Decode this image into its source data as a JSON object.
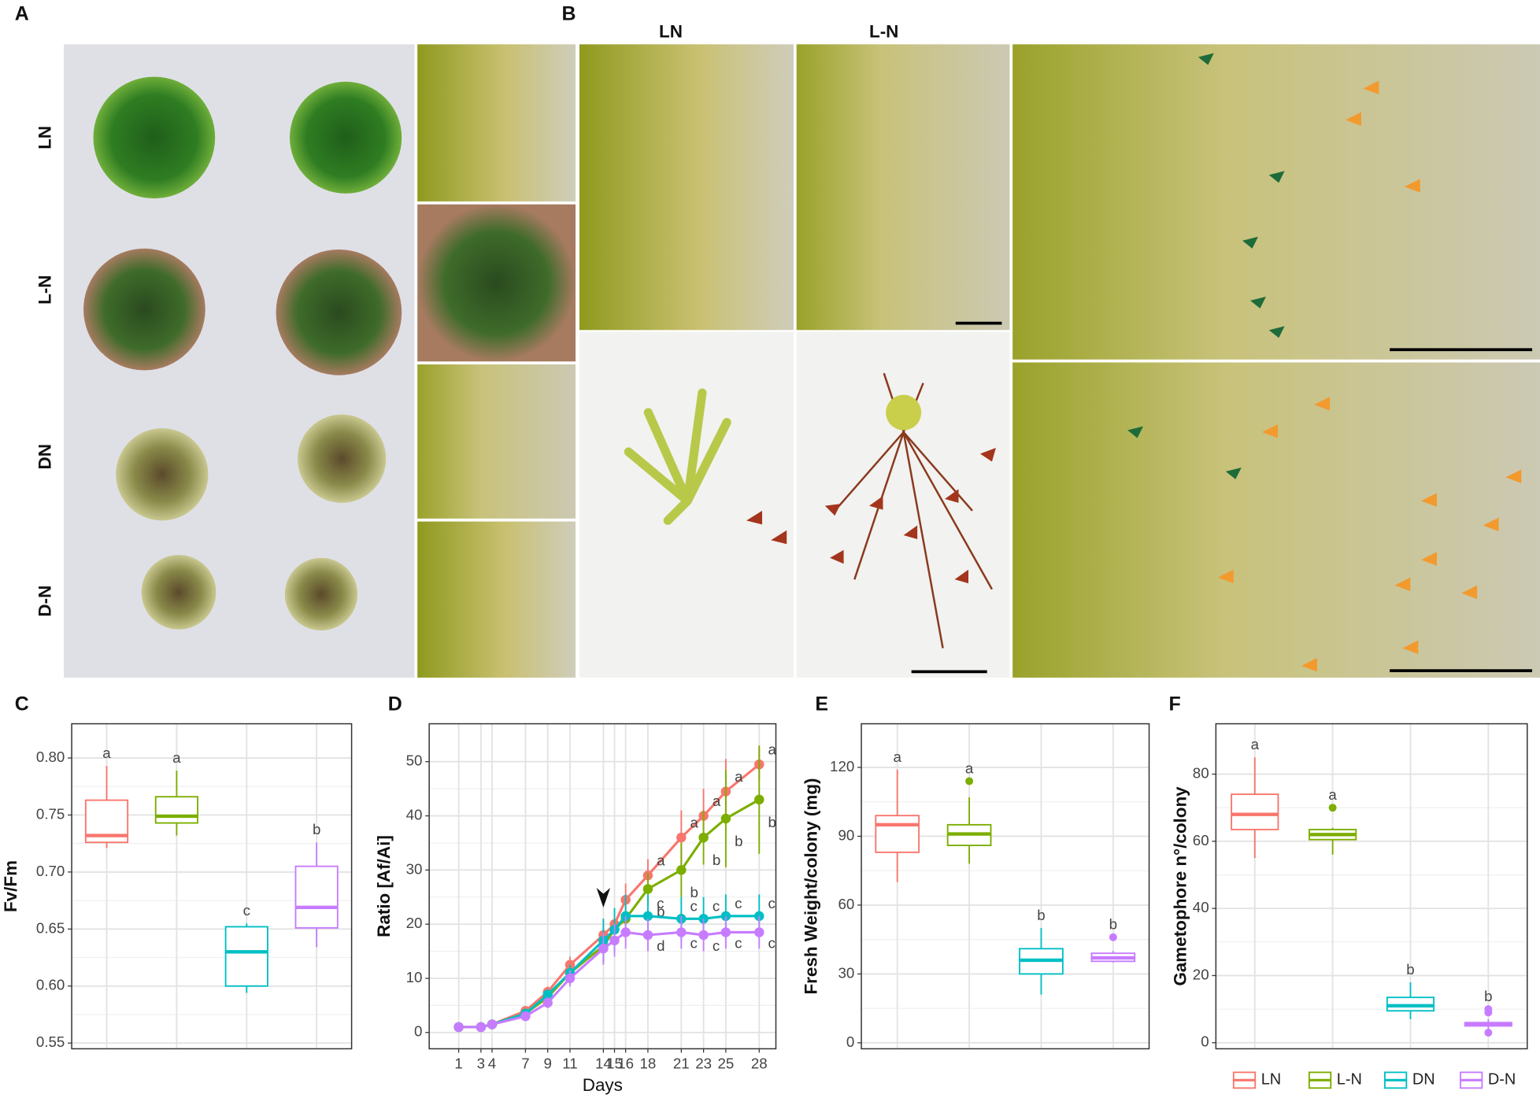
{
  "panel_labels": [
    "A",
    "B",
    "C",
    "D",
    "E",
    "F"
  ],
  "photo_labels": {
    "a_rows": [
      "LN",
      "L-N",
      "DN",
      "D-N"
    ],
    "b_columns": [
      "LN",
      "L-N"
    ]
  },
  "chart_data": [
    {
      "type": "box",
      "y_label": "Fv/Fm",
      "ylim": [
        0.545,
        0.83
      ],
      "yticks": [
        0.55,
        {
          "value": 0.6,
          "label": "0.60"
        },
        0.65,
        {
          "value": 0.7,
          "label": "0.70"
        },
        0.75,
        {
          "value": 0.8,
          "label": "0.80"
        }
      ],
      "grid": true,
      "series": [
        {
          "name": "LN",
          "color": "#f8766d",
          "min": 0.721,
          "q1": 0.726,
          "median": 0.732,
          "q3": 0.763,
          "max": 0.793,
          "outliers": [],
          "label": "a"
        },
        {
          "name": "L-N",
          "color": "#7cae00",
          "min": 0.732,
          "q1": 0.743,
          "median": 0.749,
          "q3": 0.766,
          "max": 0.789,
          "outliers": [],
          "label": "a"
        },
        {
          "name": "DN",
          "color": "#00bfc4",
          "min": 0.594,
          "q1": 0.6,
          "median": 0.63,
          "q3": 0.652,
          "max": 0.655,
          "outliers": [],
          "label": "c"
        },
        {
          "name": "D-N",
          "color": "#c77cff",
          "min": 0.634,
          "q1": 0.651,
          "median": 0.669,
          "q3": 0.705,
          "max": 0.726,
          "outliers": [],
          "label": "b"
        }
      ]
    },
    {
      "type": "line",
      "x_label": "Days",
      "y_label": "Ratio [Af/Ai]",
      "xlim": [
        -1.65,
        29.5
      ],
      "ylim": [
        -3,
        57
      ],
      "x": [
        1,
        3,
        4,
        7,
        9,
        11,
        14,
        15,
        16,
        18,
        21,
        23,
        25,
        28
      ],
      "xticks": [
        1,
        3,
        4,
        7,
        9,
        11,
        14,
        15,
        16,
        18,
        21,
        23,
        25,
        28
      ],
      "yticks": [
        0,
        10,
        20,
        30,
        40,
        50
      ],
      "grid": true,
      "arrow_x": 14,
      "series": [
        {
          "name": "LN",
          "color": "#f8766d",
          "values": [
            1,
            1,
            1.5,
            4,
            7.5,
            12.5,
            18,
            20,
            24.5,
            29,
            36,
            40,
            44.5,
            49.5
          ],
          "errors": [
            0.3,
            0.3,
            0.4,
            0.8,
            1,
            1.5,
            3,
            3,
            3,
            3,
            5,
            5,
            6,
            3
          ],
          "labels": [
            null,
            null,
            null,
            null,
            null,
            null,
            null,
            null,
            null,
            "a",
            "a",
            "a",
            "a",
            "a"
          ]
        },
        {
          "name": "L-N",
          "color": "#7cae00",
          "values": [
            1,
            1,
            1.5,
            3.5,
            6.5,
            11,
            16,
            19,
            21,
            26.5,
            30,
            36,
            39.5,
            43
          ],
          "errors": [
            0.3,
            0.3,
            0.4,
            0.8,
            1,
            1.5,
            3,
            3,
            3,
            3,
            5,
            5,
            9,
            10
          ],
          "labels": [
            null,
            null,
            null,
            null,
            null,
            null,
            null,
            null,
            null,
            "b",
            "b",
            "b",
            "b",
            "b"
          ]
        },
        {
          "name": "DN",
          "color": "#00bfc4",
          "values": [
            1,
            1,
            1.5,
            3.5,
            7,
            11,
            17,
            19,
            21.5,
            21.5,
            21,
            21,
            21.5,
            21.5
          ],
          "errors": [
            0.3,
            0.3,
            0.4,
            0.8,
            1,
            1.5,
            4,
            4,
            4,
            4,
            4,
            4,
            4,
            4
          ],
          "labels": [
            null,
            null,
            null,
            null,
            null,
            null,
            null,
            null,
            null,
            "c",
            "c",
            "c",
            "c",
            "c"
          ]
        },
        {
          "name": "D-N",
          "color": "#c77cff",
          "values": [
            1,
            1,
            1.5,
            3,
            5.5,
            10,
            15.5,
            17,
            18.5,
            18,
            18.5,
            18,
            18.5,
            18.5
          ],
          "errors": [
            0.3,
            0.3,
            0.4,
            0.8,
            1,
            1.5,
            3,
            3,
            3,
            3,
            3,
            3,
            3,
            3
          ],
          "labels": [
            null,
            null,
            null,
            null,
            null,
            null,
            null,
            null,
            null,
            "d",
            "c",
            "c",
            "c",
            "c"
          ]
        }
      ]
    },
    {
      "type": "box",
      "y_label": "Fresh Weight/colony (mg)",
      "ylim": [
        -2.6,
        139
      ],
      "yticks": [
        0,
        30,
        60,
        90,
        120
      ],
      "grid": true,
      "series": [
        {
          "name": "LN",
          "color": "#f8766d",
          "min": 70,
          "q1": 83,
          "median": 95,
          "q3": 99,
          "max": 119,
          "outliers": [],
          "label": "a"
        },
        {
          "name": "L-N",
          "color": "#7cae00",
          "min": 78,
          "q1": 86,
          "median": 91,
          "q3": 95,
          "max": 107,
          "outliers": [
            114
          ],
          "label": "a"
        },
        {
          "name": "DN",
          "color": "#00bfc4",
          "min": 21,
          "q1": 30,
          "median": 36,
          "q3": 41,
          "max": 50,
          "outliers": [],
          "label": "b"
        },
        {
          "name": "D-N",
          "color": "#c77cff",
          "min": 35,
          "q1": 35.5,
          "median": 37,
          "q3": 39,
          "max": 40,
          "outliers": [
            46
          ],
          "label": "b"
        }
      ]
    },
    {
      "type": "box",
      "y_label": "Gametophore n°/colony",
      "ylim": [
        -1.8,
        95
      ],
      "yticks": [
        0,
        20,
        40,
        60,
        80
      ],
      "grid": true,
      "legend": "bottom",
      "series": [
        {
          "name": "LN",
          "color": "#f8766d",
          "min": 55,
          "q1": 63.5,
          "median": 68,
          "q3": 74,
          "max": 85,
          "outliers": [],
          "label": "a"
        },
        {
          "name": "L-N",
          "color": "#7cae00",
          "min": 56,
          "q1": 60.5,
          "median": 62,
          "q3": 63.5,
          "max": 64,
          "outliers": [
            70
          ],
          "label": "a"
        },
        {
          "name": "DN",
          "color": "#00bfc4",
          "min": 7,
          "q1": 9.5,
          "median": 11,
          "q3": 13.5,
          "max": 18,
          "outliers": [],
          "label": "b"
        },
        {
          "name": "D-N",
          "color": "#c77cff",
          "min": 4,
          "q1": 5,
          "median": 5.5,
          "q3": 6,
          "max": 7,
          "outliers": [
            10,
            9,
            3
          ],
          "label": "b"
        }
      ]
    }
  ]
}
